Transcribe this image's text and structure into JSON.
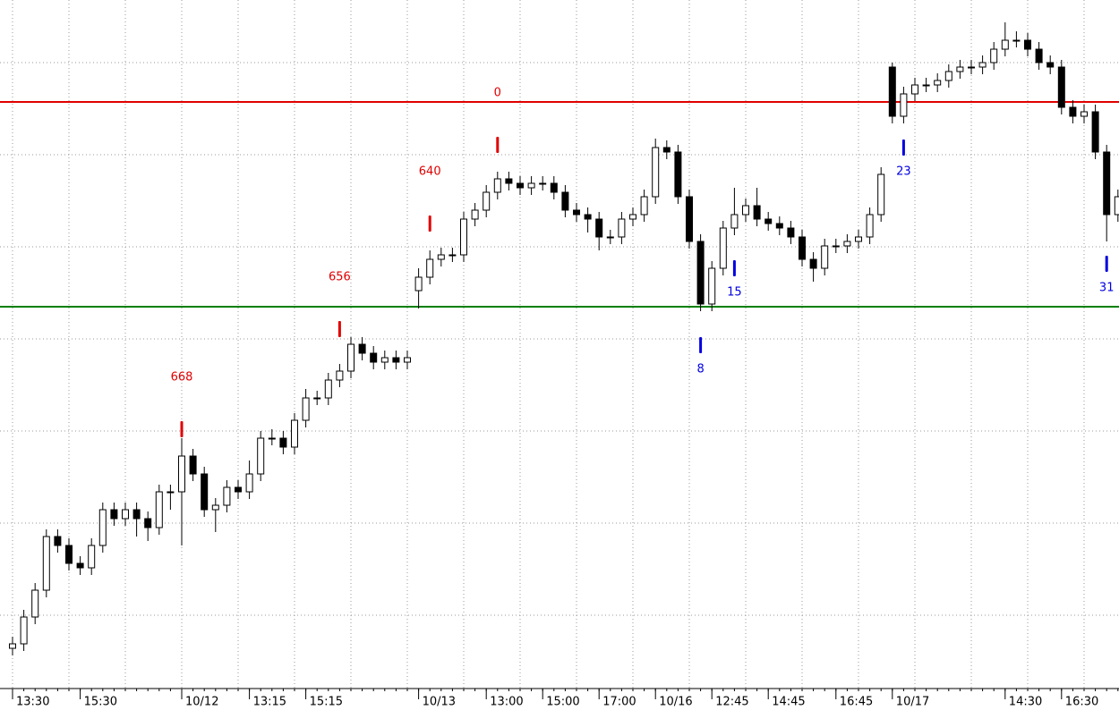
{
  "chart_data": {
    "type": "candlestick",
    "categories": [
      "13:30",
      null,
      null,
      null,
      null,
      null,
      "15:30",
      null,
      null,
      null,
      null,
      null,
      null,
      null,
      null,
      "10/12",
      null,
      null,
      null,
      null,
      null,
      "13:15",
      null,
      null,
      null,
      null,
      "15:15",
      null,
      null,
      null,
      null,
      null,
      null,
      null,
      null,
      null,
      "10/13",
      null,
      null,
      null,
      null,
      null,
      "13:00",
      null,
      null,
      null,
      null,
      "15:00",
      null,
      null,
      null,
      null,
      "17:00",
      null,
      null,
      null,
      null,
      "10/16",
      null,
      null,
      null,
      null,
      "12:45",
      null,
      null,
      null,
      null,
      "14:45",
      null,
      null,
      null,
      null,
      null,
      "16:45",
      null,
      null,
      null,
      null,
      "10/17",
      null,
      null,
      null,
      null,
      null,
      null,
      null,
      null,
      null,
      "14:30",
      null,
      null,
      null,
      null,
      "16:30",
      null,
      null,
      null,
      null,
      null
    ],
    "open": [
      45,
      50,
      80,
      110,
      170,
      160,
      140,
      135,
      160,
      200,
      190,
      200,
      190,
      180,
      220,
      220,
      260,
      240,
      200,
      205,
      225,
      220,
      240,
      280,
      280,
      270,
      300,
      325,
      325,
      345,
      355,
      385,
      375,
      365,
      370,
      365,
      445,
      460,
      480,
      485,
      485,
      525,
      535,
      555,
      570,
      565,
      560,
      565,
      565,
      555,
      535,
      530,
      525,
      505,
      505,
      525,
      530,
      550,
      605,
      600,
      550,
      500,
      430,
      470,
      515,
      530,
      540,
      525,
      520,
      515,
      505,
      480,
      470,
      495,
      495,
      500,
      505,
      530,
      695,
      640,
      665,
      675,
      675,
      680,
      690,
      695,
      695,
      700,
      715,
      725,
      725,
      715,
      700,
      695,
      650,
      640,
      645,
      600,
      530
    ],
    "high": [
      58,
      88,
      118,
      178,
      178,
      168,
      148,
      168,
      208,
      208,
      208,
      208,
      198,
      228,
      228,
      280,
      268,
      248,
      213,
      233,
      233,
      255,
      288,
      290,
      288,
      308,
      335,
      333,
      353,
      363,
      393,
      393,
      383,
      378,
      378,
      378,
      470,
      490,
      493,
      493,
      533,
      543,
      563,
      578,
      578,
      573,
      573,
      573,
      573,
      563,
      543,
      538,
      533,
      513,
      533,
      538,
      558,
      615,
      613,
      608,
      558,
      508,
      478,
      523,
      560,
      548,
      560,
      533,
      528,
      523,
      513,
      488,
      503,
      503,
      508,
      513,
      538,
      583,
      700,
      673,
      683,
      683,
      688,
      698,
      703,
      703,
      708,
      723,
      745,
      735,
      733,
      723,
      708,
      703,
      658,
      653,
      653,
      608,
      558
    ],
    "low": [
      37,
      42,
      72,
      102,
      152,
      132,
      127,
      127,
      152,
      182,
      182,
      170,
      165,
      172,
      200,
      160,
      232,
      192,
      175,
      197,
      212,
      212,
      232,
      272,
      262,
      262,
      292,
      317,
      317,
      337,
      347,
      367,
      357,
      357,
      357,
      357,
      425,
      452,
      472,
      477,
      477,
      517,
      527,
      547,
      557,
      552,
      552,
      557,
      547,
      527,
      522,
      510,
      490,
      497,
      497,
      517,
      522,
      542,
      592,
      542,
      492,
      422,
      422,
      462,
      507,
      522,
      517,
      512,
      507,
      497,
      472,
      455,
      462,
      487,
      487,
      492,
      497,
      522,
      632,
      632,
      657,
      667,
      667,
      672,
      682,
      687,
      687,
      692,
      707,
      717,
      707,
      692,
      687,
      642,
      632,
      632,
      592,
      500,
      522
    ],
    "close": [
      50,
      80,
      110,
      170,
      160,
      140,
      135,
      160,
      200,
      190,
      200,
      190,
      180,
      220,
      220,
      260,
      240,
      200,
      205,
      225,
      220,
      240,
      280,
      280,
      270,
      300,
      325,
      325,
      345,
      355,
      385,
      375,
      365,
      370,
      365,
      370,
      460,
      480,
      485,
      485,
      525,
      535,
      555,
      570,
      565,
      560,
      565,
      565,
      555,
      535,
      530,
      525,
      505,
      505,
      525,
      530,
      550,
      605,
      600,
      550,
      500,
      430,
      470,
      515,
      530,
      540,
      525,
      520,
      515,
      505,
      480,
      470,
      495,
      495,
      500,
      505,
      530,
      575,
      640,
      665,
      675,
      675,
      680,
      690,
      695,
      695,
      700,
      715,
      725,
      725,
      715,
      700,
      695,
      650,
      640,
      645,
      600,
      530,
      550
    ],
    "ylim": [
      0,
      770
    ],
    "ygrid": [
      82,
      185,
      288,
      391,
      494,
      597,
      700
    ],
    "grid": true,
    "lines": [
      {
        "value": 656,
        "color": "#e00000"
      },
      {
        "value": 427,
        "color": "#008000"
      }
    ],
    "annotations": [
      {
        "text": "668",
        "index": 15,
        "level": 290,
        "color": "#e00000",
        "side": "above"
      },
      {
        "text": "656",
        "index": 29,
        "level": 402,
        "color": "#e00000",
        "side": "above"
      },
      {
        "text": "640",
        "index": 37,
        "level": 520,
        "color": "#e00000",
        "side": "above"
      },
      {
        "text": "0",
        "index": 43,
        "level": 608,
        "color": "#e00000",
        "side": "above"
      },
      {
        "text": "8",
        "index": 61,
        "level": 384,
        "color": "#0000e0",
        "side": "below"
      },
      {
        "text": "15",
        "index": 64,
        "level": 470,
        "color": "#0000e0",
        "side": "below"
      },
      {
        "text": "23",
        "index": 79,
        "level": 605,
        "color": "#0000e0",
        "side": "below"
      },
      {
        "text": "31",
        "index": 97,
        "level": 475,
        "color": "#0000e0",
        "side": "below"
      }
    ]
  }
}
